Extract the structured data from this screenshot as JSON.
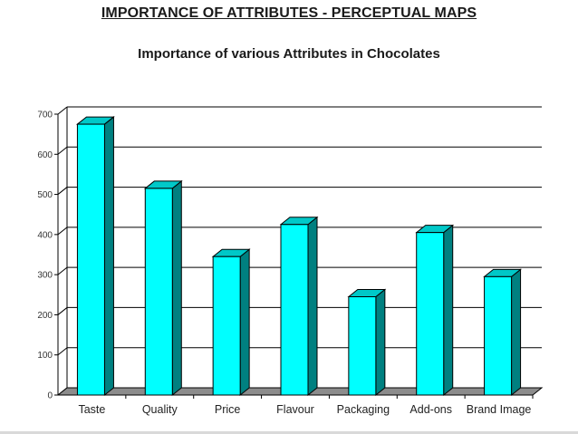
{
  "slide": {
    "title": "IMPORTANCE OF ATTRIBUTES - PERCEPTUAL MAPS"
  },
  "chart_data": {
    "type": "bar",
    "title": "Importance of various Attributes in Chocolates",
    "xlabel": "",
    "ylabel": "",
    "categories": [
      "Taste",
      "Quality",
      "Price",
      "Flavour",
      "Packaging",
      "Add-ons",
      "Brand Image"
    ],
    "values": [
      675,
      515,
      345,
      425,
      245,
      405,
      295
    ],
    "ylim": [
      0,
      700
    ],
    "yticks": [
      0,
      100,
      200,
      300,
      400,
      500,
      600,
      700
    ],
    "grid": true,
    "legend": "none",
    "style": "3d-column",
    "colors": {
      "bar_front": "#00ffff",
      "bar_side": "#008080",
      "bar_top": "#00c8c8",
      "bar_outline": "#000000",
      "gridline": "#000000"
    }
  }
}
